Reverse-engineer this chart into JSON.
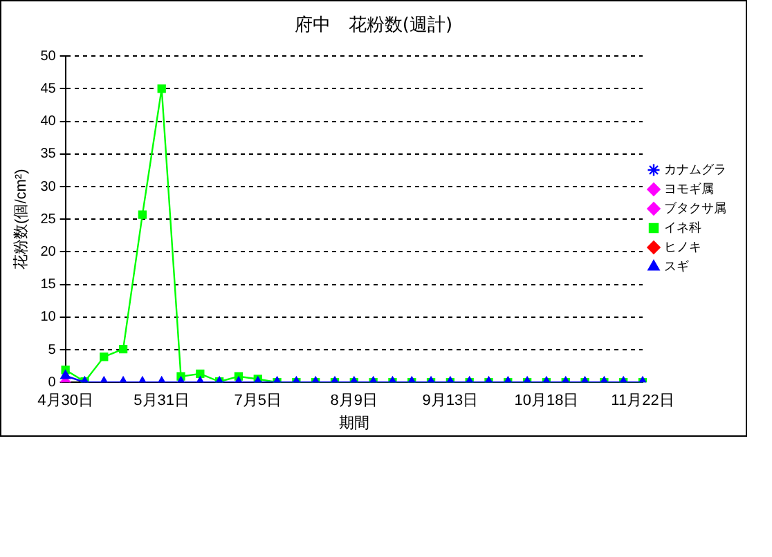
{
  "chart_data": {
    "type": "line",
    "title": "府中　花粉数(週計)",
    "xlabel": "期間",
    "ylabel": "花粉数(個/cm²)",
    "categories": [
      "4月30日",
      null,
      null,
      null,
      null,
      "5月31日",
      null,
      null,
      null,
      null,
      "7月5日",
      null,
      null,
      null,
      null,
      "8月9日",
      null,
      null,
      null,
      null,
      "9月13日",
      null,
      null,
      null,
      null,
      "10月18日",
      null,
      null,
      null,
      null,
      "11月22日"
    ],
    "series": [
      {
        "name": "カナムグラ",
        "color": "#0000ff",
        "marker": "star",
        "line_style": "dotted",
        "values": [
          null,
          null,
          null,
          null,
          null,
          null,
          null,
          null,
          null,
          null,
          null,
          null,
          null,
          null,
          null,
          null,
          null,
          null,
          null,
          null,
          null,
          null,
          null,
          null,
          null,
          null,
          null,
          null,
          null,
          null,
          null
        ]
      },
      {
        "name": "ヨモギ属",
        "color": "#ff00ff",
        "marker": "diamond",
        "line_style": "dotted",
        "values": [
          null,
          null,
          null,
          null,
          null,
          null,
          null,
          null,
          null,
          null,
          null,
          null,
          null,
          null,
          null,
          null,
          null,
          null,
          null,
          null,
          null,
          null,
          null,
          null,
          null,
          null,
          null,
          null,
          null,
          null,
          null
        ]
      },
      {
        "name": "ブタクサ属",
        "color": "#ff00ff",
        "marker": "diamond",
        "line_style": "solid",
        "values": [
          0,
          null,
          null,
          null,
          null,
          null,
          null,
          null,
          null,
          null,
          null,
          null,
          null,
          null,
          null,
          null,
          null,
          null,
          null,
          null,
          null,
          null,
          null,
          null,
          null,
          null,
          null,
          null,
          null,
          null,
          null
        ]
      },
      {
        "name": "イネ科",
        "color": "#00ff00",
        "marker": "square",
        "line_style": "solid",
        "values": [
          1.9,
          0.1,
          3.9,
          5.1,
          25.7,
          45,
          0.9,
          1.3,
          0.1,
          0.9,
          0.5,
          0,
          0,
          0,
          0,
          0,
          0,
          0,
          0,
          0,
          0,
          0,
          0,
          0,
          0,
          0,
          0,
          0,
          0,
          0,
          0
        ]
      },
      {
        "name": "ヒノキ",
        "color": "#ff0000",
        "marker": "diamond",
        "line_style": "solid",
        "values": [
          null,
          null,
          null,
          null,
          null,
          null,
          null,
          null,
          null,
          null,
          null,
          null,
          null,
          null,
          null,
          null,
          null,
          null,
          null,
          null,
          null,
          null,
          null,
          null,
          null,
          null,
          null,
          null,
          null,
          null,
          null
        ]
      },
      {
        "name": "スギ",
        "color": "#0000ff",
        "marker": "triangle",
        "line_style": "solid",
        "values": [
          1.0,
          0,
          0,
          0,
          0,
          0,
          0,
          0,
          0,
          0,
          0,
          0,
          0,
          0,
          0,
          0,
          0,
          0,
          0,
          0,
          0,
          0,
          0,
          0,
          0,
          0,
          0,
          0,
          0,
          0,
          0
        ]
      }
    ],
    "ylim": [
      0,
      50
    ],
    "yticks": [
      0,
      5,
      10,
      15,
      20,
      25,
      30,
      35,
      40,
      45,
      50
    ],
    "grid": "y",
    "legend": "right"
  }
}
